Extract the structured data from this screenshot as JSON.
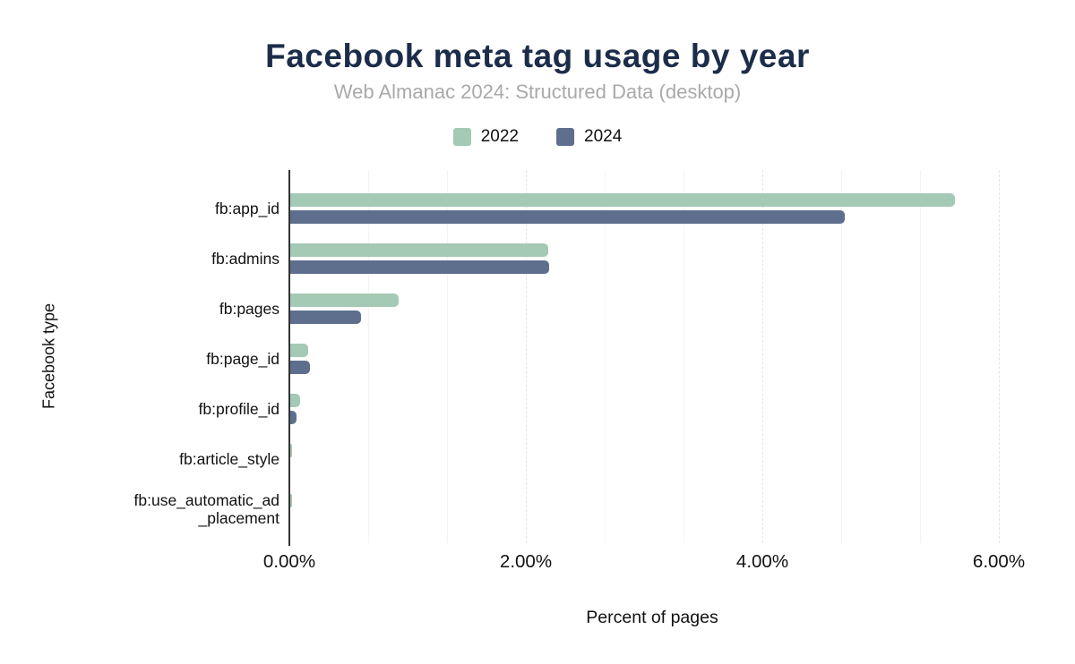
{
  "chart_data": {
    "type": "bar",
    "orientation": "horizontal",
    "title": "Facebook meta tag usage by year",
    "subtitle": "Web Almanac 2024: Structured Data (desktop)",
    "xlabel": "Percent of pages",
    "ylabel": "Facebook type",
    "categories": [
      "fb:app_id",
      "fb:admins",
      "fb:pages",
      "fb:page_id",
      "fb:profile_id",
      "fb:article_style",
      "fb:use_automatic_ad\n_placement"
    ],
    "series": [
      {
        "name": "2022",
        "color": "#a4c9b4",
        "values": [
          5.62,
          2.18,
          0.92,
          0.15,
          0.08,
          0.01,
          0.01
        ]
      },
      {
        "name": "2024",
        "color": "#5e6f8d",
        "values": [
          4.69,
          2.19,
          0.6,
          0.17,
          0.05,
          0,
          0
        ]
      }
    ],
    "xlim": [
      0,
      6.2
    ],
    "x_ticks": [
      {
        "value": 0,
        "label": "0.00%"
      },
      {
        "value": 2,
        "label": "2.00%"
      },
      {
        "value": 4,
        "label": "4.00%"
      },
      {
        "value": 6,
        "label": "6.00%"
      }
    ],
    "minor_grid_step": 0.6667,
    "major_grid_values": [
      2,
      4,
      6
    ],
    "grid": true,
    "legend_position": "top",
    "colors": {
      "title": "#1c2d4a",
      "subtitle": "#a9a9a9",
      "axis_line": "#333333",
      "minor_grid": "#f3f3f3",
      "major_grid": "#e4e4e4",
      "text": "#111111",
      "background": "#ffffff"
    }
  }
}
